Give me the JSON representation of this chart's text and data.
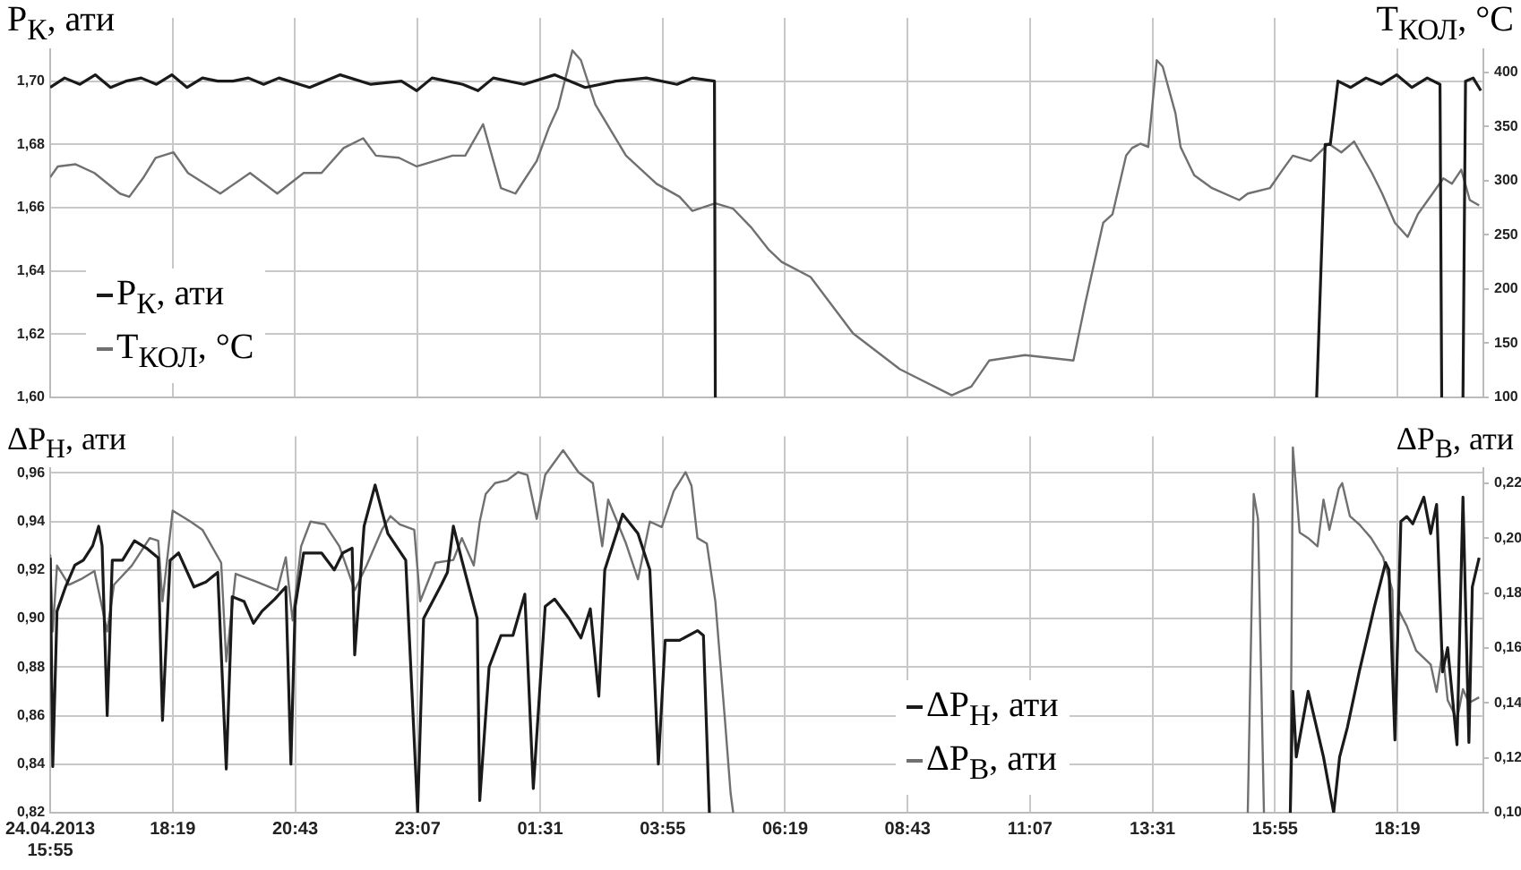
{
  "chart_data": [
    {
      "type": "line",
      "ylabel": "P$_{К}$, ати",
      "y2label": "T$_{КОЛ}$, °C",
      "xlim": [
        "2013-04-24T15:55",
        "2013-04-25T20:00"
      ],
      "xticks": [
        {
          "value": "2013-04-24T15:55",
          "label": null
        },
        {
          "value": "2013-04-24T18:19",
          "label": null
        },
        {
          "value": "2013-04-24T20:43",
          "label": null
        },
        {
          "value": "2013-04-24T23:07",
          "label": null
        },
        {
          "value": "2013-04-25T01:31",
          "label": null
        },
        {
          "value": "2013-04-25T03:55",
          "label": null
        },
        {
          "value": "2013-04-25T06:19",
          "label": null
        },
        {
          "value": "2013-04-25T08:43",
          "label": null
        },
        {
          "value": "2013-04-25T11:07",
          "label": null
        },
        {
          "value": "2013-04-25T13:31",
          "label": null
        },
        {
          "value": "2013-04-25T15:55",
          "label": null
        },
        {
          "value": "2013-04-25T18:19",
          "label": null
        }
      ],
      "ylim": [
        1.6,
        1.72
      ],
      "yticks": [
        {
          "value": 1.6,
          "label": "1,60"
        },
        {
          "value": 1.62,
          "label": "1,62"
        },
        {
          "value": 1.64,
          "label": "1,64"
        },
        {
          "value": 1.66,
          "label": "1,66"
        },
        {
          "value": 1.68,
          "label": "1,68"
        },
        {
          "value": 1.7,
          "label": "1,70"
        }
      ],
      "y2lim": [
        100,
        450
      ],
      "y2ticks": [
        100,
        150,
        200,
        250,
        300,
        350,
        400
      ],
      "grid": true,
      "legend": "bottom left",
      "tick_labels": "y",
      "marker": "none",
      "series": [
        {
          "name": "P$_{К}$, ати",
          "color": "#1a1a1a",
          "x": [
            "2013-04-24T15:55",
            "2013-04-24T16:12",
            "2013-04-24T16:30",
            "2013-04-24T16:48",
            "2013-04-24T17:06",
            "2013-04-24T17:24",
            "2013-04-24T17:42",
            "2013-04-24T18:00",
            "2013-04-24T18:18",
            "2013-04-24T18:36",
            "2013-04-24T18:54",
            "2013-04-24T19:12",
            "2013-04-24T19:30",
            "2013-04-24T19:48",
            "2013-04-24T20:06",
            "2013-04-24T20:24",
            "2013-04-24T21:00",
            "2013-04-24T21:36",
            "2013-04-24T22:12",
            "2013-04-24T22:48",
            "2013-04-24T23:06",
            "2013-04-24T23:24",
            "2013-04-25T00:00",
            "2013-04-25T00:18",
            "2013-04-25T00:36",
            "2013-04-25T01:12",
            "2013-04-25T01:48",
            "2013-04-25T02:24",
            "2013-04-25T03:00",
            "2013-04-25T03:36",
            "2013-04-25T04:12",
            "2013-04-25T04:30",
            "2013-04-25T04:56",
            "2013-04-25T04:57",
            "2013-04-25T10:00",
            "2013-04-25T16:44",
            "2013-04-25T16:54",
            "2013-04-25T17:00",
            "2013-04-25T17:09",
            "2013-04-25T17:24",
            "2013-04-25T17:42",
            "2013-04-25T18:00",
            "2013-04-25T18:18",
            "2013-04-25T18:36",
            "2013-04-25T18:54",
            "2013-04-25T19:09",
            "2013-04-25T19:11",
            "2013-04-25T19:24",
            "2013-04-25T19:36",
            "2013-04-25T19:39",
            "2013-04-25T19:48",
            "2013-04-25T19:57"
          ],
          "values": [
            1.698,
            1.701,
            1.699,
            1.702,
            1.698,
            1.7,
            1.701,
            1.699,
            1.702,
            1.698,
            1.701,
            1.7,
            1.7,
            1.701,
            1.699,
            1.701,
            1.698,
            1.702,
            1.699,
            1.7,
            1.697,
            1.701,
            1.699,
            1.697,
            1.701,
            1.699,
            1.702,
            1.698,
            1.7,
            1.701,
            1.699,
            1.701,
            1.7,
            1.6,
            null,
            1.6,
            1.68,
            1.68,
            1.7,
            1.698,
            1.701,
            1.699,
            1.702,
            1.698,
            1.701,
            1.699,
            1.6,
            null,
            1.6,
            1.7,
            1.701,
            1.697
          ]
        },
        {
          "name": "T$_{КОЛ}$, °C",
          "color": "#707070",
          "axis": "y2",
          "x": [
            "2013-04-24T15:55",
            "2013-04-24T16:04",
            "2013-04-24T16:25",
            "2013-04-24T16:47",
            "2013-04-24T17:17",
            "2013-04-24T17:28",
            "2013-04-24T17:44",
            "2013-04-24T17:59",
            "2013-04-24T18:20",
            "2013-04-24T18:37",
            "2013-04-24T19:15",
            "2013-04-24T19:50",
            "2013-04-24T20:22",
            "2013-04-24T20:53",
            "2013-04-24T21:14",
            "2013-04-24T21:40",
            "2013-04-24T22:03",
            "2013-04-24T22:18",
            "2013-04-24T22:45",
            "2013-04-24T23:06",
            "2013-04-24T23:48",
            "2013-04-25T00:03",
            "2013-04-25T00:24",
            "2013-04-25T00:45",
            "2013-04-25T01:02",
            "2013-04-25T01:27",
            "2013-04-25T01:41",
            "2013-04-25T01:52",
            "2013-04-25T02:09",
            "2013-04-25T02:19",
            "2013-04-25T02:36",
            "2013-04-25T03:12",
            "2013-04-25T03:48",
            "2013-04-25T04:15",
            "2013-04-25T04:30",
            "2013-04-25T04:57",
            "2013-04-25T05:18",
            "2013-04-25T05:39",
            "2013-04-25T06:00",
            "2013-04-25T06:15",
            "2013-04-25T06:49",
            "2013-04-25T07:39",
            "2013-04-25T08:34",
            "2013-04-25T09:35",
            "2013-04-25T09:58",
            "2013-04-25T10:19",
            "2013-04-25T11:01",
            "2013-04-25T11:58",
            "2013-04-25T12:12",
            "2013-04-25T12:33",
            "2013-04-25T12:44",
            "2013-04-25T13:00",
            "2013-04-25T13:07",
            "2013-04-25T13:17",
            "2013-04-25T13:26",
            "2013-04-25T13:36",
            "2013-04-25T13:43",
            "2013-04-25T13:58",
            "2013-04-25T14:04",
            "2013-04-25T14:20",
            "2013-04-25T14:41",
            "2013-04-25T15:13",
            "2013-04-25T15:23",
            "2013-04-25T15:49",
            "2013-04-25T16:04",
            "2013-04-25T16:16",
            "2013-04-25T16:37",
            "2013-04-25T16:58",
            "2013-04-25T17:13",
            "2013-04-25T17:28",
            "2013-04-25T17:49",
            "2013-04-25T18:01",
            "2013-04-25T18:16",
            "2013-04-25T18:31",
            "2013-04-25T18:43",
            "2013-04-25T19:13",
            "2013-04-25T19:23",
            "2013-04-25T19:34",
            "2013-04-25T19:44",
            "2013-04-25T19:55"
          ],
          "values": [
            303,
            313,
            315,
            307,
            288,
            285,
            302,
            321,
            326,
            307,
            288,
            307,
            288,
            307,
            307,
            330,
            339,
            323,
            321,
            313,
            323,
            323,
            352,
            293,
            288,
            318,
            348,
            367,
            420,
            411,
            370,
            323,
            297,
            285,
            272,
            279,
            274,
            257,
            236,
            225,
            211,
            159,
            126,
            102,
            110,
            134,
            139,
            134,
            187,
            261,
            269,
            323,
            330,
            334,
            331,
            411,
            405,
            362,
            331,
            305,
            293,
            282,
            288,
            293,
            310,
            323,
            318,
            334,
            326,
            336,
            307,
            288,
            261,
            248,
            269,
            302,
            297,
            310,
            282,
            277
          ]
        }
      ]
    },
    {
      "type": "line",
      "ylabel": "ΔP$_{Н}$, ати",
      "y2label": "ΔP$_{В}$, ати",
      "xlim": [
        "2013-04-24T15:55",
        "2013-04-25T20:00"
      ],
      "xticks": [
        {
          "value": "2013-04-24T15:55",
          "label": "24.04.2013\n15:55"
        },
        {
          "value": "2013-04-24T18:19",
          "label": "18:19"
        },
        {
          "value": "2013-04-24T20:43",
          "label": "20:43"
        },
        {
          "value": "2013-04-24T23:07",
          "label": "23:07"
        },
        {
          "value": "2013-04-25T01:31",
          "label": "01:31"
        },
        {
          "value": "2013-04-25T03:55",
          "label": "03:55"
        },
        {
          "value": "2013-04-25T06:19",
          "label": "06:19"
        },
        {
          "value": "2013-04-25T08:43",
          "label": "08:43"
        },
        {
          "value": "2013-04-25T11:07",
          "label": "11:07"
        },
        {
          "value": "2013-04-25T13:31",
          "label": "13:31"
        },
        {
          "value": "2013-04-25T15:55",
          "label": "15:55"
        },
        {
          "value": "2013-04-25T18:19",
          "label": "18:19"
        }
      ],
      "ylim": [
        0.82,
        0.975
      ],
      "yticks": [
        {
          "value": 0.82,
          "label": "0,82"
        },
        {
          "value": 0.84,
          "label": "0,84"
        },
        {
          "value": 0.86,
          "label": "0,86"
        },
        {
          "value": 0.88,
          "label": "0,88"
        },
        {
          "value": 0.9,
          "label": "0,90"
        },
        {
          "value": 0.92,
          "label": "0,92"
        },
        {
          "value": 0.94,
          "label": "0,94"
        },
        {
          "value": 0.96,
          "label": "0,96"
        }
      ],
      "y2lim": [
        0.1,
        0.237
      ],
      "y2ticks": [
        {
          "value": 0.1,
          "label": "0,10"
        },
        {
          "value": 0.12,
          "label": "0,12"
        },
        {
          "value": 0.14,
          "label": "0,14"
        },
        {
          "value": 0.16,
          "label": "0,16"
        },
        {
          "value": 0.18,
          "label": "0,18"
        },
        {
          "value": 0.2,
          "label": "0,20"
        },
        {
          "value": 0.22,
          "label": "0,22"
        }
      ],
      "grid": true,
      "legend": "bottom",
      "marker": "none",
      "series": [
        {
          "name": "ΔP$_{Н}$, ати",
          "color": "#1a1a1a",
          "x": [
            "2013-04-24T15:55",
            "2013-04-24T15:58",
            "2013-04-24T16:03",
            "2013-04-24T16:13",
            "2013-04-24T16:24",
            "2013-04-24T16:34",
            "2013-04-24T16:45",
            "2013-04-24T16:52",
            "2013-04-24T16:56",
            "2013-04-24T17:02",
            "2013-04-24T17:08",
            "2013-04-24T17:20",
            "2013-04-24T17:34",
            "2013-04-24T17:48",
            "2013-04-24T18:02",
            "2013-04-24T18:07",
            "2013-04-24T18:16",
            "2013-04-24T18:26",
            "2013-04-24T18:44",
            "2013-04-24T18:58",
            "2013-04-24T19:12",
            "2013-04-24T19:22",
            "2013-04-24T19:29",
            "2013-04-24T19:43",
            "2013-04-24T19:54",
            "2013-04-24T20:04",
            "2013-04-24T20:19",
            "2013-04-24T20:32",
            "2013-04-24T20:38",
            "2013-04-24T20:43",
            "2013-04-24T20:53",
            "2013-04-24T21:14",
            "2013-04-24T21:29",
            "2013-04-24T21:39",
            "2013-04-24T21:50",
            "2013-04-24T21:53",
            "2013-04-24T22:04",
            "2013-04-24T22:17",
            "2013-04-24T22:32",
            "2013-04-24T22:53",
            "2013-04-24T23:07",
            "2013-04-24T23:14",
            "2013-04-24T23:35",
            "2013-04-24T23:42",
            "2013-04-24T23:49",
            "2013-04-24T23:59",
            "2013-04-25T00:17",
            "2013-04-25T00:20",
            "2013-04-25T00:31",
            "2013-04-25T00:45",
            "2013-04-25T00:59",
            "2013-04-25T01:13",
            "2013-04-25T01:23",
            "2013-04-25T01:37",
            "2013-04-25T01:48",
            "2013-04-25T02:05",
            "2013-04-25T02:19",
            "2013-04-25T02:30",
            "2013-04-25T02:40",
            "2013-04-25T02:47",
            "2013-04-25T03:08",
            "2013-04-25T03:26",
            "2013-04-25T03:40",
            "2013-04-25T03:50",
            "2013-04-25T03:58",
            "2013-04-25T04:15",
            "2013-04-25T04:36",
            "2013-04-25T04:43",
            "2013-04-25T04:50",
            "2013-04-25T10:00",
            "2013-04-25T16:13",
            "2013-04-25T16:16",
            "2013-04-25T16:20",
            "2013-04-25T16:34",
            "2013-04-25T16:52",
            "2013-04-25T17:04",
            "2013-04-25T17:11",
            "2013-04-25T17:20",
            "2013-04-25T17:34",
            "2013-04-25T17:52",
            "2013-04-25T18:05",
            "2013-04-25T18:09",
            "2013-04-25T18:16",
            "2013-04-25T18:23",
            "2013-04-25T18:30",
            "2013-04-25T18:37",
            "2013-04-25T18:50",
            "2013-04-25T18:58",
            "2013-04-25T19:05",
            "2013-04-25T19:12",
            "2013-04-25T19:18",
            "2013-04-25T19:29",
            "2013-04-25T19:36",
            "2013-04-25T19:43",
            "2013-04-25T19:47",
            "2013-04-25T19:55"
          ],
          "values": [
            0.925,
            0.839,
            0.903,
            0.913,
            0.922,
            0.924,
            0.93,
            0.938,
            0.93,
            0.86,
            0.924,
            0.924,
            0.932,
            0.929,
            0.925,
            0.858,
            0.924,
            0.927,
            0.913,
            0.915,
            0.919,
            0.838,
            0.909,
            0.907,
            0.898,
            0.903,
            0.908,
            0.913,
            0.84,
            0.905,
            0.927,
            0.927,
            0.92,
            0.927,
            0.929,
            0.885,
            0.938,
            0.955,
            0.935,
            0.924,
            0.82,
            0.9,
            0.914,
            0.919,
            0.938,
            0.924,
            0.9,
            0.825,
            0.88,
            0.893,
            0.893,
            0.91,
            0.83,
            0.905,
            0.908,
            0.9,
            0.892,
            0.904,
            0.868,
            0.92,
            0.943,
            0.935,
            0.92,
            0.84,
            0.891,
            0.891,
            0.895,
            0.893,
            0.82,
            null,
            0.82,
            0.87,
            0.843,
            0.87,
            0.843,
            0.82,
            0.843,
            0.855,
            0.878,
            0.905,
            0.923,
            0.92,
            0.85,
            0.94,
            0.942,
            0.939,
            0.95,
            0.935,
            0.947,
            0.878,
            0.888,
            0.848,
            0.95,
            0.849,
            0.913,
            0.925
          ]
        },
        {
          "name": "ΔP$_{В}$, ати",
          "color": "#707070",
          "axis": "y2",
          "x": [
            "2013-04-24T15:55",
            "2013-04-24T15:58",
            "2013-04-24T16:03",
            "2013-04-24T16:17",
            "2013-04-24T16:31",
            "2013-04-24T16:47",
            "2013-04-24T17:02",
            "2013-04-24T17:10",
            "2013-04-24T17:31",
            "2013-04-24T17:52",
            "2013-04-24T18:02",
            "2013-04-24T18:07",
            "2013-04-24T18:19",
            "2013-04-24T18:40",
            "2013-04-24T18:54",
            "2013-04-24T19:16",
            "2013-04-24T19:22",
            "2013-04-24T19:33",
            "2013-04-24T19:58",
            "2013-04-24T20:22",
            "2013-04-24T20:32",
            "2013-04-24T20:40",
            "2013-04-24T20:50",
            "2013-04-24T21:01",
            "2013-04-24T21:18",
            "2013-04-24T21:35",
            "2013-04-24T21:53",
            "2013-04-24T22:07",
            "2013-04-24T22:25",
            "2013-04-24T22:35",
            "2013-04-24T22:46",
            "2013-04-24T23:03",
            "2013-04-24T23:10",
            "2013-04-24T23:28",
            "2013-04-24T23:49",
            "2013-04-24T23:59",
            "2013-04-25T00:13",
            "2013-04-25T00:20",
            "2013-04-25T00:27",
            "2013-04-25T00:38",
            "2013-04-25T00:52",
            "2013-04-25T01:05",
            "2013-04-25T01:16",
            "2013-04-25T01:27",
            "2013-04-25T01:37",
            "2013-04-25T01:58",
            "2013-04-25T02:16",
            "2013-04-25T02:33",
            "2013-04-25T02:44",
            "2013-04-25T02:51",
            "2013-04-25T03:12",
            "2013-04-25T03:26",
            "2013-04-25T03:40",
            "2013-04-25T03:54",
            "2013-04-25T04:08",
            "2013-04-25T04:22",
            "2013-04-25T04:29",
            "2013-04-25T04:36",
            "2013-04-25T04:47",
            "2013-04-25T04:57",
            "2013-04-25T05:08",
            "2013-04-25T05:15",
            "2013-04-25T05:18",
            "2013-04-25T10:00",
            "2013-04-25T15:23",
            "2013-04-25T15:30",
            "2013-04-25T15:35",
            "2013-04-25T15:42",
            "2013-04-25T16:00",
            "2013-04-25T16:13",
            "2013-04-25T16:16",
            "2013-04-25T16:24",
            "2013-04-25T16:34",
            "2013-04-25T16:45",
            "2013-04-25T16:52",
            "2013-04-25T16:59",
            "2013-04-25T17:10",
            "2013-04-25T17:14",
            "2013-04-25T17:23",
            "2013-04-25T17:34",
            "2013-04-25T17:48",
            "2013-04-25T18:02",
            "2013-04-25T18:13",
            "2013-04-25T18:16",
            "2013-04-25T18:20",
            "2013-04-25T18:30",
            "2013-04-25T18:41",
            "2013-04-25T18:58",
            "2013-04-25T19:05",
            "2013-04-25T19:12",
            "2013-04-25T19:18",
            "2013-04-25T19:29",
            "2013-04-25T19:36",
            "2013-04-25T19:43",
            "2013-04-25T19:55"
          ],
          "values": [
            0.194,
            0.166,
            0.19,
            0.183,
            0.185,
            0.188,
            0.166,
            0.183,
            0.19,
            0.2,
            0.199,
            0.177,
            0.21,
            0.206,
            0.203,
            0.191,
            0.155,
            0.187,
            0.184,
            0.181,
            0.193,
            0.17,
            0.197,
            0.206,
            0.205,
            0.197,
            0.181,
            0.19,
            0.203,
            0.208,
            0.205,
            0.203,
            0.177,
            0.191,
            0.192,
            0.2,
            0.19,
            0.206,
            0.216,
            0.22,
            0.221,
            0.224,
            0.223,
            0.207,
            0.223,
            0.232,
            0.224,
            0.22,
            0.197,
            0.214,
            0.198,
            0.185,
            0.206,
            0.204,
            0.217,
            0.224,
            0.219,
            0.2,
            0.198,
            0.177,
            0.135,
            0.107,
            0.1,
            null,
            0.1,
            0.216,
            0.207,
            0.1,
            null,
            0.1,
            0.233,
            0.202,
            0.2,
            0.197,
            0.214,
            0.203,
            0.218,
            0.22,
            0.208,
            0.205,
            0.2,
            0.193,
            0.181,
            0.127,
            0.174,
            0.168,
            0.159,
            0.154,
            0.144,
            0.159,
            0.141,
            0.134,
            0.145,
            0.14,
            0.142
          ]
        }
      ]
    }
  ]
}
